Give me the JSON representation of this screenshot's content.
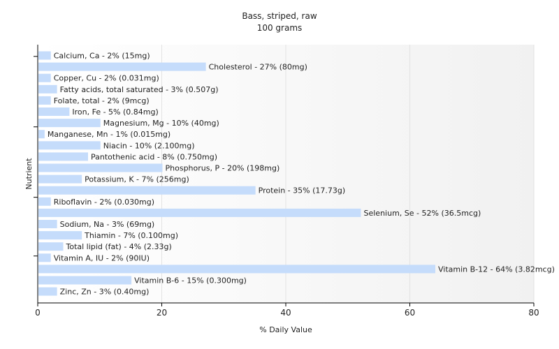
{
  "chart_data": {
    "type": "bar",
    "orientation": "horizontal",
    "title": "Bass, striped, raw",
    "subtitle": "100 grams",
    "xlabel": "% Daily Value",
    "ylabel": "Nutrient",
    "xlim": [
      0,
      80
    ],
    "xticks": [
      0,
      20,
      40,
      60,
      80
    ],
    "grid": true,
    "bar_color": "#c5dcfb",
    "categories": [
      "Calcium, Ca",
      "Cholesterol",
      "Copper, Cu",
      "Fatty acids, total saturated",
      "Folate, total",
      "Iron, Fe",
      "Magnesium, Mg",
      "Manganese, Mn",
      "Niacin",
      "Pantothenic acid",
      "Phosphorus, P",
      "Potassium, K",
      "Protein",
      "Riboflavin",
      "Selenium, Se",
      "Sodium, Na",
      "Thiamin",
      "Total lipid (fat)",
      "Vitamin A, IU",
      "Vitamin B-12",
      "Vitamin B-6",
      "Zinc, Zn"
    ],
    "values": [
      2,
      27,
      2,
      3,
      2,
      5,
      10,
      1,
      10,
      8,
      20,
      7,
      35,
      2,
      52,
      3,
      7,
      4,
      2,
      64,
      15,
      3
    ],
    "labels": [
      "Calcium, Ca - 2% (15mg)",
      "Cholesterol - 27% (80mg)",
      "Copper, Cu - 2% (0.031mg)",
      "Fatty acids, total saturated - 3% (0.507g)",
      "Folate, total - 2% (9mcg)",
      "Iron, Fe - 5% (0.84mg)",
      "Magnesium, Mg - 10% (40mg)",
      "Manganese, Mn - 1% (0.015mg)",
      "Niacin - 10% (2.100mg)",
      "Pantothenic acid - 8% (0.750mg)",
      "Phosphorus, P - 20% (198mg)",
      "Potassium, K - 7% (256mg)",
      "Protein - 35% (17.73g)",
      "Riboflavin - 2% (0.030mg)",
      "Selenium, Se - 52% (36.5mcg)",
      "Sodium, Na - 3% (69mg)",
      "Thiamin - 7% (0.100mg)",
      "Total lipid (fat) - 4% (2.33g)",
      "Vitamin A, IU - 2% (90IU)",
      "Vitamin B-12 - 64% (3.82mcg)",
      "Vitamin B-6 - 15% (0.300mg)",
      "Zinc, Zn - 3% (0.40mg)"
    ]
  }
}
